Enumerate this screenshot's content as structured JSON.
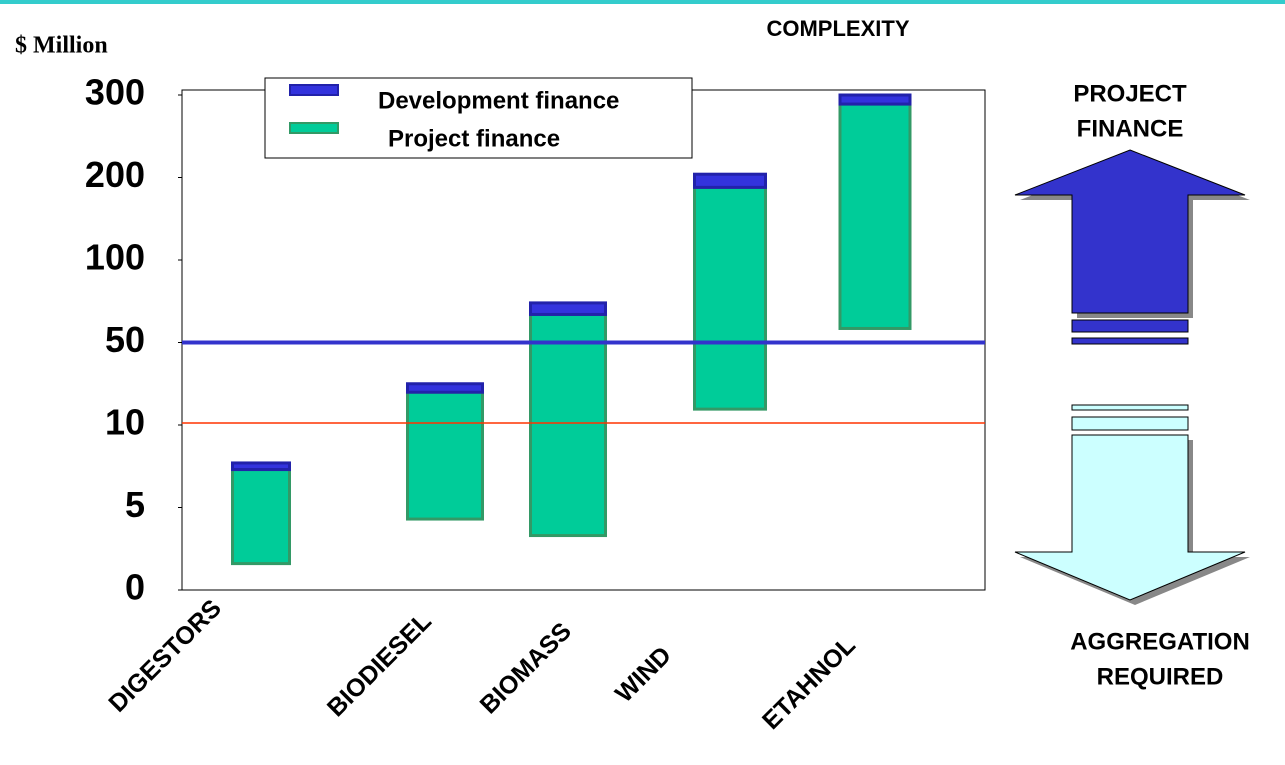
{
  "chart_data": {
    "type": "floating-bar",
    "title": "COMPLEXITY",
    "y_label": "$ Million",
    "categories": [
      "DIGESTORS",
      "BIODIESEL",
      "BIOMASS",
      "WIND",
      "ETAHNOL"
    ],
    "series": [
      {
        "name": "Development finance",
        "color": "#3333dd",
        "low": [
          7.3,
          25.9,
          67,
          188,
          289
        ],
        "high": [
          7.7,
          30,
          74,
          204,
          300
        ]
      },
      {
        "name": "Project finance",
        "color": "#00cc99",
        "low": [
          1.6,
          4.3,
          3.3,
          17.7,
          58.5
        ],
        "high": [
          7.3,
          25.9,
          67,
          188,
          289
        ]
      }
    ],
    "reference_lines": [
      {
        "value": 50,
        "color": "#3333cc"
      },
      {
        "value": 11,
        "color": "#ff3300"
      }
    ],
    "ylim": [
      0,
      300
    ],
    "yticks": [
      0,
      5,
      10,
      50,
      100,
      200,
      300
    ],
    "scale": "piecewise-by-ticks",
    "up_arrow_label": [
      "PROJECT",
      "FINANCE"
    ],
    "down_arrow_label": [
      "AGGREGATION",
      "REQUIRED"
    ]
  }
}
